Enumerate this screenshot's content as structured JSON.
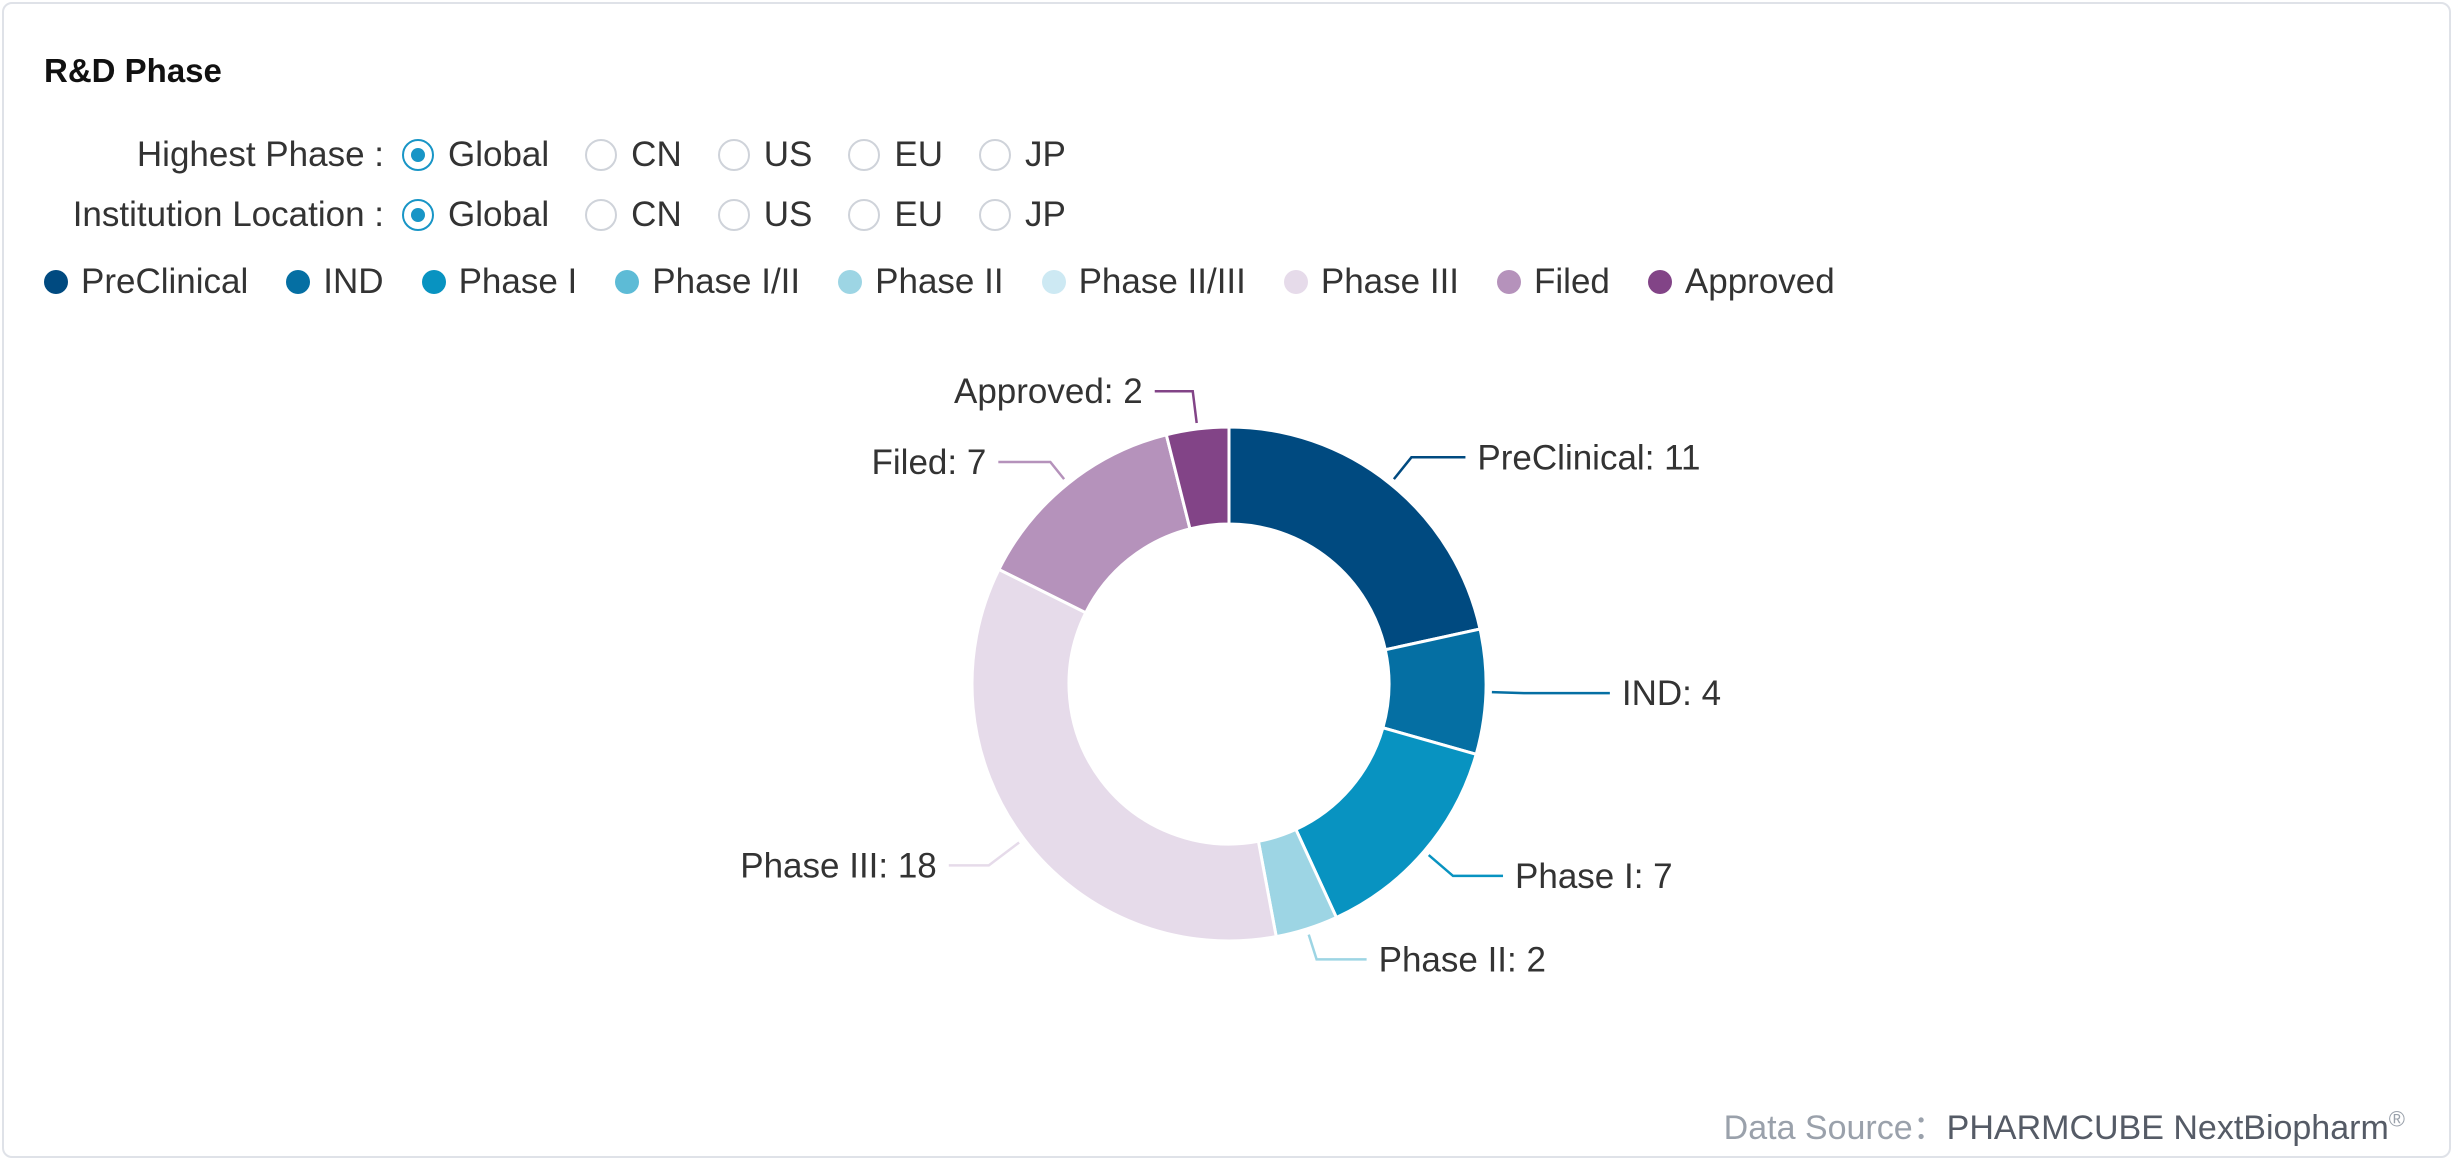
{
  "title": "R&D Phase",
  "filters": [
    {
      "label": "Highest Phase :",
      "options": [
        "Global",
        "CN",
        "US",
        "EU",
        "JP"
      ],
      "selected": "Global"
    },
    {
      "label": "Institution Location :",
      "options": [
        "Global",
        "CN",
        "US",
        "EU",
        "JP"
      ],
      "selected": "Global"
    }
  ],
  "legend": [
    {
      "name": "PreClinical",
      "color": "#004a80"
    },
    {
      "name": "IND",
      "color": "#056fa3"
    },
    {
      "name": "Phase I",
      "color": "#0893c1"
    },
    {
      "name": "Phase I/II",
      "color": "#5dbbd6"
    },
    {
      "name": "Phase II",
      "color": "#9dd5e4"
    },
    {
      "name": "Phase II/III",
      "color": "#cde9f3"
    },
    {
      "name": "Phase III",
      "color": "#e6dbea"
    },
    {
      "name": "Filed",
      "color": "#b592bb"
    },
    {
      "name": "Approved",
      "color": "#824487"
    }
  ],
  "chart_data": {
    "type": "pie",
    "donut": true,
    "categories": [
      "PreClinical",
      "IND",
      "Phase I",
      "Phase II",
      "Phase III",
      "Filed",
      "Approved"
    ],
    "values": [
      11,
      4,
      7,
      2,
      18,
      7,
      2
    ],
    "labels": [
      "PreClinical: 11",
      "IND: 4",
      "Phase I: 7",
      "Phase II: 2",
      "Phase III: 18",
      "Filed: 7",
      "Approved: 2"
    ],
    "colors": [
      "#004a80",
      "#056fa3",
      "#0893c1",
      "#9dd5e4",
      "#e6dbea",
      "#b592bb",
      "#824487"
    ],
    "legend_position": "top-left"
  },
  "footer": {
    "prefix": "Data Source：",
    "brand": "PHARMCUBE NextBiopharm",
    "mark": "®"
  }
}
